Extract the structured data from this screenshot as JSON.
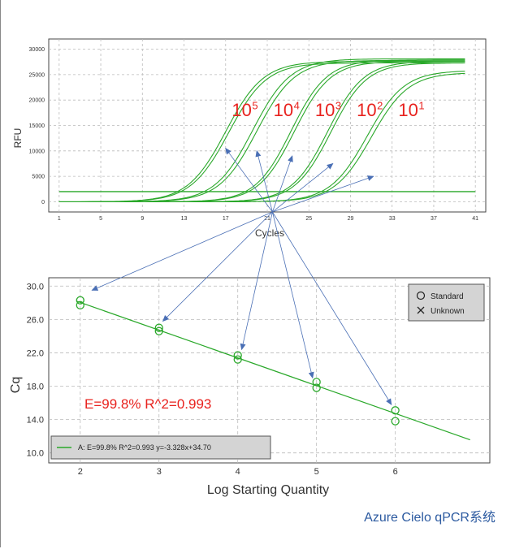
{
  "chart_data": [
    {
      "type": "line",
      "ylabel": "RFU",
      "xlabel": "Cycles",
      "xlim": [
        0,
        42
      ],
      "ylim": [
        -2000,
        32000
      ],
      "x_ticks": [
        1,
        5,
        9,
        13,
        17,
        21,
        25,
        29,
        33,
        37,
        41
      ],
      "y_ticks": [
        0,
        5000,
        10000,
        15000,
        20000,
        25000,
        30000
      ],
      "threshold": 2000,
      "series": [
        {
          "label_base": "10",
          "label_exp": "5",
          "curves": [
            {
              "x0": 17.0,
              "k": 0.55,
              "top": 27600
            },
            {
              "x0": 17.3,
              "k": 0.55,
              "top": 27300
            }
          ]
        },
        {
          "label_base": "10",
          "label_exp": "4",
          "curves": [
            {
              "x0": 19.6,
              "k": 0.55,
              "top": 28100
            },
            {
              "x0": 20.0,
              "k": 0.55,
              "top": 27800
            }
          ]
        },
        {
          "label_base": "10",
          "label_exp": "3",
          "curves": [
            {
              "x0": 23.3,
              "k": 0.58,
              "top": 27900
            },
            {
              "x0": 23.6,
              "k": 0.58,
              "top": 27600
            }
          ]
        },
        {
          "label_base": "10",
          "label_exp": "2",
          "curves": [
            {
              "x0": 26.8,
              "k": 0.58,
              "top": 27600
            },
            {
              "x0": 27.1,
              "k": 0.58,
              "top": 27300
            }
          ]
        },
        {
          "label_base": "10",
          "label_exp": "1",
          "curves": [
            {
              "x0": 30.6,
              "k": 0.56,
              "top": 25800
            },
            {
              "x0": 31.0,
              "k": 0.56,
              "top": 25400
            }
          ]
        }
      ],
      "annotation_origin_cycle": 21.5
    },
    {
      "type": "scatter",
      "xlabel": "Log Starting Quantity",
      "ylabel": "Cq",
      "xlim": [
        1.6,
        7.2
      ],
      "ylim": [
        8.8,
        31.0
      ],
      "x_ticks": [
        2,
        3,
        4,
        5,
        6
      ],
      "y_ticks": [
        10.0,
        14.0,
        18.0,
        22.0,
        26.0,
        30.0
      ],
      "points": [
        {
          "x": 2,
          "y": 28.3
        },
        {
          "x": 2,
          "y": 27.7
        },
        {
          "x": 3,
          "y": 25.0
        },
        {
          "x": 3,
          "y": 24.6
        },
        {
          "x": 4,
          "y": 21.7
        },
        {
          "x": 4,
          "y": 21.2
        },
        {
          "x": 5,
          "y": 18.5
        },
        {
          "x": 5,
          "y": 17.8
        },
        {
          "x": 6,
          "y": 15.1
        },
        {
          "x": 6,
          "y": 13.8
        }
      ],
      "fit": {
        "slope": -3.328,
        "intercept": 34.7,
        "x_range": [
          2,
          6.95
        ]
      },
      "efficiency_text": "E=99.8%  R^2=0.993",
      "legend": {
        "standard": "Standard",
        "unknown": "Unknown",
        "fit_line": "A: E=99.8% R^2=0.993 y=-3.328x+34.70"
      }
    }
  ],
  "caption": "Azure Cielo qPCR系统",
  "colors": {
    "curve": "#2aa82a",
    "arrow": "#4a6fb5",
    "label": "#e8221e",
    "caption": "#2c5aa0"
  }
}
